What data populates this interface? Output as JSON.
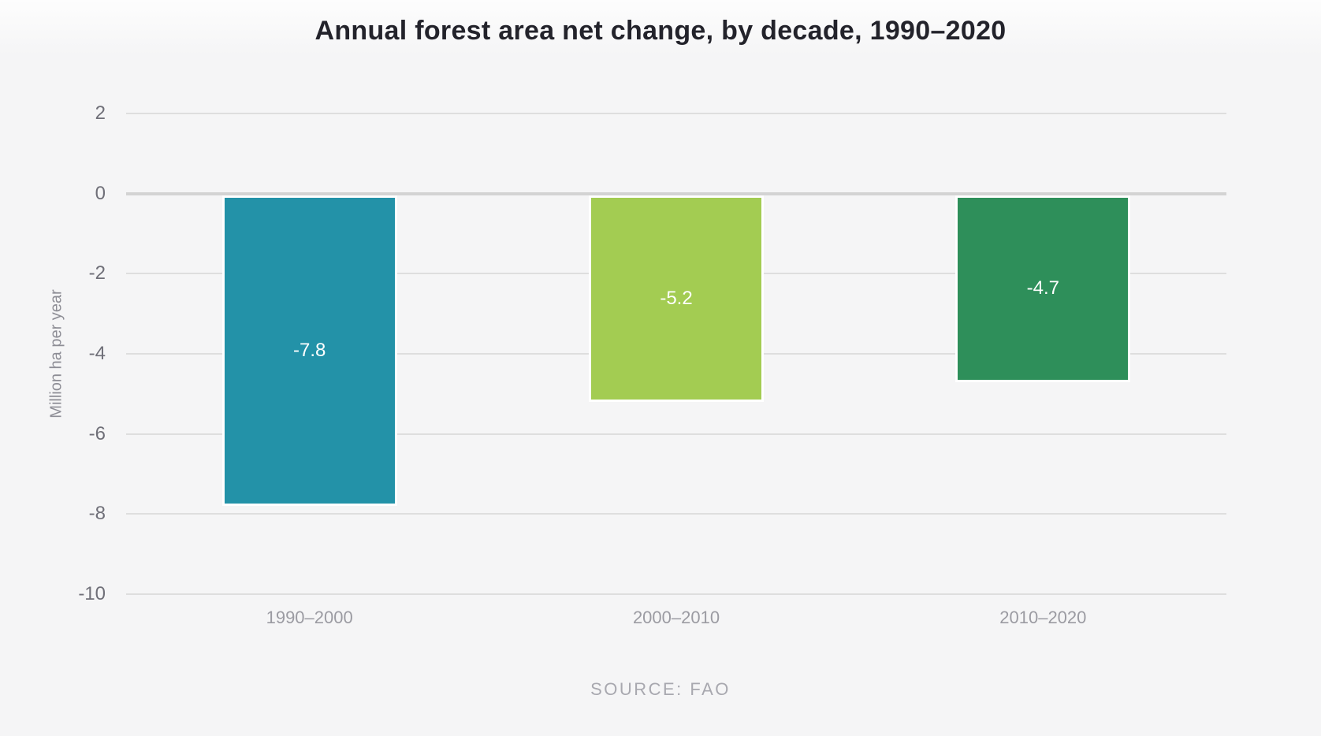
{
  "chart_data": {
    "type": "bar",
    "title": "Annual forest area net change, by decade, 1990–2020",
    "categories": [
      "1990–2000",
      "2000–2010",
      "2010–2020"
    ],
    "values": [
      -7.8,
      -5.2,
      -4.7
    ],
    "value_labels": [
      "-7.8",
      "-5.2",
      "-4.7"
    ],
    "bar_colors": [
      "#2392a8",
      "#a3cc52",
      "#2e8f5a"
    ],
    "ylabel": "Million ha per year",
    "xlabel": "",
    "ylim": [
      -10,
      2
    ],
    "yticks": [
      2,
      0,
      -2,
      -4,
      -6,
      -8,
      -10
    ],
    "grid": true,
    "legend": false,
    "source": "SOURCE: FAO"
  },
  "colors": {
    "background": "#f5f5f6",
    "title_text": "#23232b",
    "y_tick_text": "#6f6f78",
    "x_tick_text": "#9b9ba2",
    "axis_title_text": "#8d8d95",
    "source_text": "#a8a8af",
    "gridline": "#dedede",
    "zero_line": "#d3d3d3",
    "value_label_text": "#ffffff"
  }
}
